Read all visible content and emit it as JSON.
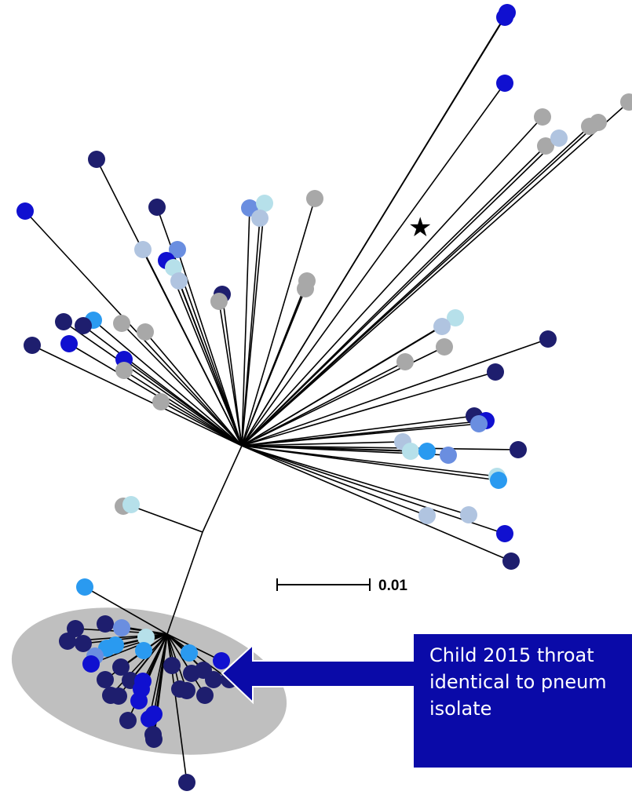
{
  "scale_bar": {
    "label": "0.01"
  },
  "callout": {
    "lines": [
      "Child 2015 throat",
      "identical to pneum",
      "isolate"
    ]
  },
  "colors": {
    "navy": "#1e1e6e",
    "blue": "#1010d0",
    "mid_blue": "#6a8ee0",
    "sky_blue": "#2a9af0",
    "light_blue": "#b0c4e0",
    "pale_cyan": "#b6e0ea",
    "gray": "#a8a8a8",
    "highlight_ellipse": "#bfbfbf",
    "callout_bg": "#0a0aa8",
    "callout_arrow": "#0a0aa8"
  },
  "markers": [
    {
      "name": "reference-star",
      "symbol": "★"
    }
  ]
}
